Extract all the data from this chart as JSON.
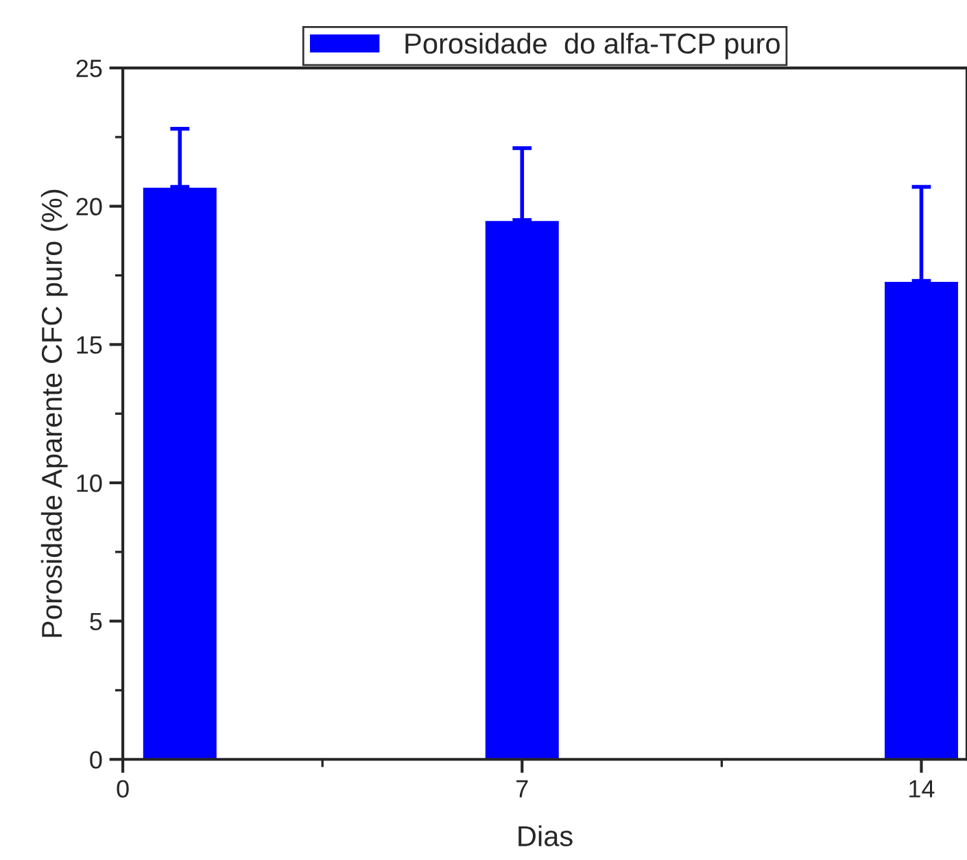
{
  "chart_data": {
    "type": "bar",
    "xlabel": "Dias",
    "ylabel": "Porosidade Aparente CFC puro (%)",
    "x": [
      1,
      7,
      14
    ],
    "series": [
      {
        "name": "Porosidade  do alfa-TCP puro",
        "color": "#0000ff",
        "values": [
          20.7,
          19.5,
          17.3
        ],
        "errors": [
          [
            20.7,
            22.8
          ],
          [
            19.5,
            22.1
          ],
          [
            17.3,
            20.7
          ]
        ]
      }
    ],
    "xlim": [
      0,
      14.8
    ],
    "xticks": [
      0,
      7,
      14
    ],
    "ylim": [
      0,
      25
    ],
    "yticks": [
      0,
      5,
      10,
      15,
      20,
      25
    ],
    "grid": false,
    "legend": "top"
  }
}
